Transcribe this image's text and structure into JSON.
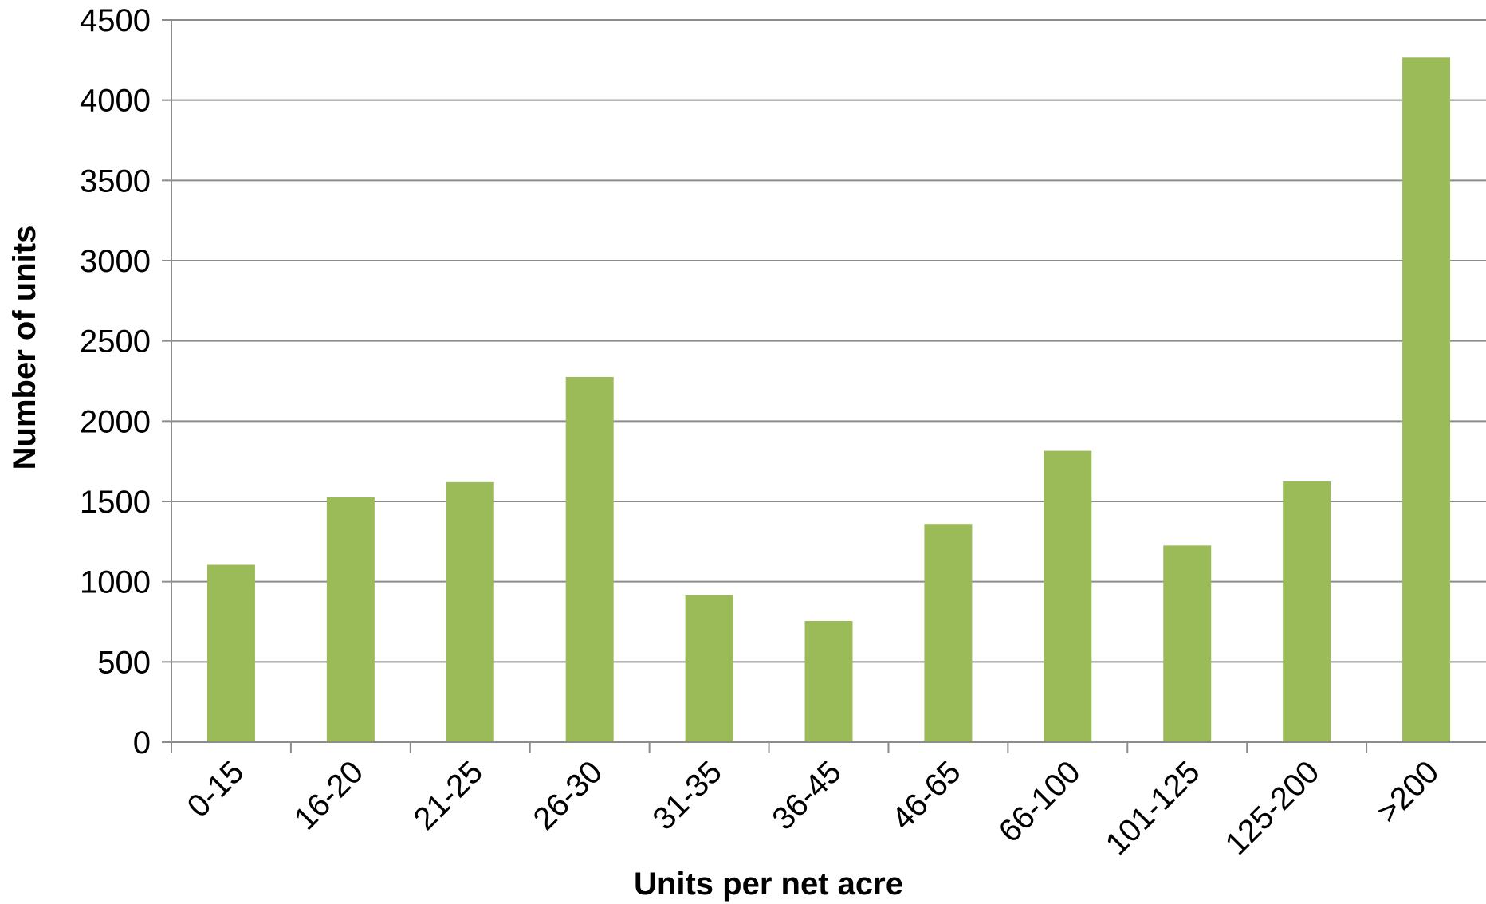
{
  "chart_data": {
    "type": "bar",
    "title": "",
    "xlabel": "Units per net acre",
    "ylabel": "Number of units",
    "categories": [
      "0-15",
      "16-20",
      "21-25",
      "26-30",
      "31-35",
      "36-45",
      "46-65",
      "66-100",
      "101-125",
      "125-200",
      ">200"
    ],
    "values": [
      1105,
      1525,
      1620,
      2275,
      915,
      755,
      1360,
      1815,
      1225,
      1625,
      4265
    ],
    "ylim": [
      0,
      4500
    ],
    "yticks": [
      0,
      500,
      1000,
      1500,
      2000,
      2500,
      3000,
      3500,
      4000,
      4500
    ],
    "grid": true,
    "legend": "none",
    "bar_color": "#9bbb59",
    "grid_color": "#8c8c8c"
  }
}
